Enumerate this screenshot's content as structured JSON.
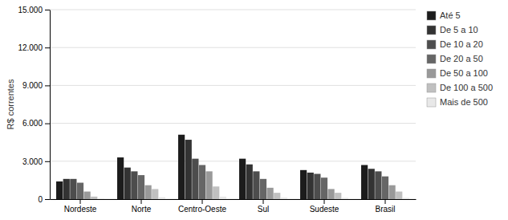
{
  "chart_data": {
    "type": "bar",
    "categories": [
      "Nordeste",
      "Norte",
      "Centro-Oeste",
      "Sul",
      "Sudeste",
      "Brasil"
    ],
    "series": [
      {
        "name": "Até 5",
        "color": "#1c1c1c",
        "values": [
          1400,
          3300,
          5100,
          3200,
          2300,
          2700
        ]
      },
      {
        "name": "De 5 a 10",
        "color": "#333333",
        "values": [
          1600,
          2500,
          4700,
          2750,
          2100,
          2400
        ]
      },
      {
        "name": "De 10 a 20",
        "color": "#4d4d4d",
        "values": [
          1600,
          2200,
          3200,
          2200,
          2000,
          2200
        ]
      },
      {
        "name": "De 20 a 50",
        "color": "#666666",
        "values": [
          1300,
          1900,
          2700,
          1600,
          1700,
          1800
        ]
      },
      {
        "name": "De 50 a 100",
        "color": "#999999",
        "values": [
          600,
          1100,
          2200,
          900,
          800,
          1100
        ]
      },
      {
        "name": "De 100 a 500",
        "color": "#c0c0c0",
        "values": [
          200,
          800,
          1000,
          500,
          500,
          600
        ]
      },
      {
        "name": "Mais de 500",
        "color": "#e8e8e8",
        "values": [
          50,
          150,
          200,
          120,
          100,
          100
        ]
      }
    ],
    "y_label": "R$ correntes",
    "ylim": [
      0,
      15000
    ],
    "yticks": [
      0,
      {
        "value": 3000,
        "label": "3.000"
      },
      {
        "value": 6000,
        "label": "6.000"
      },
      {
        "value": 9000,
        "label": "9.000"
      },
      {
        "value": 12000,
        "label": "12.000"
      },
      {
        "value": 15000,
        "label": "15.000"
      }
    ],
    "grid": true,
    "legend": "right"
  }
}
